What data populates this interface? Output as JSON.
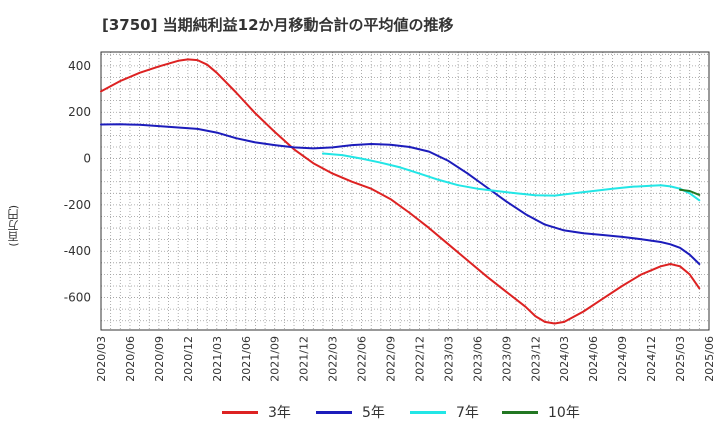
{
  "chart_data": {
    "type": "line",
    "title": "[3750]  当期純利益12か月移動合計の平均値の推移",
    "ylabel": "(百万円)",
    "ylim": [
      -740,
      460
    ],
    "yticks": [
      400,
      200,
      0,
      -200,
      -400,
      -600
    ],
    "xlim": [
      "2020-03",
      "2025-06"
    ],
    "xticks": [
      "2020/03",
      "2020/06",
      "2020/09",
      "2020/12",
      "2021/03",
      "2021/06",
      "2021/09",
      "2021/12",
      "2022/03",
      "2022/06",
      "2022/09",
      "2022/12",
      "2023/03",
      "2023/06",
      "2023/09",
      "2023/12",
      "2024/03",
      "2024/06",
      "2024/09",
      "2024/12",
      "2025/03",
      "2025/06"
    ],
    "grid": true,
    "legend_position": "bottom",
    "series": [
      {
        "name": "3年",
        "color": "#dd2222",
        "points": [
          [
            "2020-03",
            290
          ],
          [
            "2020-05",
            335
          ],
          [
            "2020-07",
            370
          ],
          [
            "2020-09",
            398
          ],
          [
            "2020-11",
            422
          ],
          [
            "2020-12",
            428
          ],
          [
            "2021-01",
            425
          ],
          [
            "2021-02",
            405
          ],
          [
            "2021-03",
            370
          ],
          [
            "2021-05",
            285
          ],
          [
            "2021-07",
            195
          ],
          [
            "2021-09",
            115
          ],
          [
            "2021-11",
            40
          ],
          [
            "2022-01",
            -20
          ],
          [
            "2022-03",
            -65
          ],
          [
            "2022-05",
            -100
          ],
          [
            "2022-07",
            -130
          ],
          [
            "2022-09",
            -175
          ],
          [
            "2022-11",
            -235
          ],
          [
            "2023-01",
            -300
          ],
          [
            "2023-03",
            -370
          ],
          [
            "2023-05",
            -440
          ],
          [
            "2023-07",
            -510
          ],
          [
            "2023-09",
            -575
          ],
          [
            "2023-11",
            -640
          ],
          [
            "2023-12",
            -680
          ],
          [
            "2024-01",
            -705
          ],
          [
            "2024-02",
            -712
          ],
          [
            "2024-03",
            -705
          ],
          [
            "2024-05",
            -660
          ],
          [
            "2024-07",
            -605
          ],
          [
            "2024-09",
            -550
          ],
          [
            "2024-11",
            -500
          ],
          [
            "2025-01",
            -465
          ],
          [
            "2025-02",
            -455
          ],
          [
            "2025-03",
            -465
          ],
          [
            "2025-04",
            -500
          ],
          [
            "2025-05",
            -560
          ]
        ]
      },
      {
        "name": "5年",
        "color": "#1c1cbb",
        "points": [
          [
            "2020-03",
            147
          ],
          [
            "2020-05",
            148
          ],
          [
            "2020-07",
            146
          ],
          [
            "2020-09",
            140
          ],
          [
            "2020-11",
            134
          ],
          [
            "2021-01",
            128
          ],
          [
            "2021-03",
            112
          ],
          [
            "2021-05",
            88
          ],
          [
            "2021-07",
            70
          ],
          [
            "2021-09",
            58
          ],
          [
            "2021-11",
            48
          ],
          [
            "2022-01",
            44
          ],
          [
            "2022-03",
            48
          ],
          [
            "2022-05",
            58
          ],
          [
            "2022-07",
            63
          ],
          [
            "2022-09",
            60
          ],
          [
            "2022-11",
            50
          ],
          [
            "2023-01",
            30
          ],
          [
            "2023-03",
            -10
          ],
          [
            "2023-05",
            -65
          ],
          [
            "2023-07",
            -125
          ],
          [
            "2023-09",
            -185
          ],
          [
            "2023-11",
            -240
          ],
          [
            "2024-01",
            -285
          ],
          [
            "2024-03",
            -310
          ],
          [
            "2024-05",
            -322
          ],
          [
            "2024-07",
            -330
          ],
          [
            "2024-09",
            -338
          ],
          [
            "2024-11",
            -348
          ],
          [
            "2025-01",
            -360
          ],
          [
            "2025-02",
            -370
          ],
          [
            "2025-03",
            -385
          ],
          [
            "2025-04",
            -415
          ],
          [
            "2025-05",
            -455
          ]
        ]
      },
      {
        "name": "7年",
        "color": "#22e6e6",
        "points": [
          [
            "2022-02",
            22
          ],
          [
            "2022-04",
            15
          ],
          [
            "2022-06",
            0
          ],
          [
            "2022-08",
            -18
          ],
          [
            "2022-10",
            -38
          ],
          [
            "2022-12",
            -65
          ],
          [
            "2023-02",
            -92
          ],
          [
            "2023-04",
            -115
          ],
          [
            "2023-06",
            -130
          ],
          [
            "2023-08",
            -140
          ],
          [
            "2023-10",
            -150
          ],
          [
            "2023-12",
            -158
          ],
          [
            "2024-02",
            -160
          ],
          [
            "2024-04",
            -150
          ],
          [
            "2024-06",
            -140
          ],
          [
            "2024-08",
            -130
          ],
          [
            "2024-10",
            -122
          ],
          [
            "2024-12",
            -117
          ],
          [
            "2025-01",
            -115
          ],
          [
            "2025-02",
            -120
          ],
          [
            "2025-03",
            -130
          ],
          [
            "2025-04",
            -150
          ],
          [
            "2025-05",
            -180
          ]
        ]
      },
      {
        "name": "10年",
        "color": "#227722",
        "points": [
          [
            "2025-03",
            -135
          ],
          [
            "2025-04",
            -140
          ],
          [
            "2025-05",
            -157
          ]
        ]
      }
    ]
  }
}
